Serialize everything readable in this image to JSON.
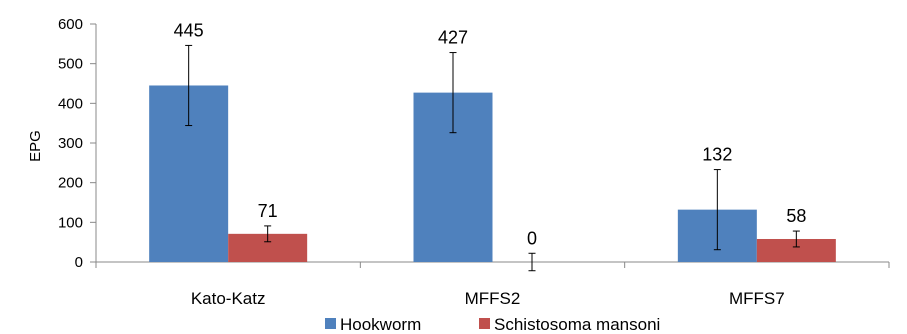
{
  "chart_data": {
    "type": "bar",
    "categories": [
      "Kato-Katz",
      "MFFS2",
      "MFFS7"
    ],
    "series": [
      {
        "name": "Hookworm",
        "color": "#4f81bd",
        "values": [
          445,
          427,
          132
        ],
        "error": [
          101,
          101,
          101
        ]
      },
      {
        "name": "Schistosoma mansoni",
        "color": "#c0504d",
        "values": [
          71,
          0,
          58
        ],
        "error": [
          20,
          22,
          20
        ]
      }
    ],
    "data_labels": [
      [
        "445",
        "427",
        "132"
      ],
      [
        "71",
        "0",
        "58"
      ]
    ],
    "ylabel": "EPG",
    "ylim": [
      0,
      600
    ],
    "yticks": [
      "0",
      "100",
      "200",
      "300",
      "400",
      "500",
      "600"
    ],
    "grid": false,
    "legend": "bottom"
  }
}
